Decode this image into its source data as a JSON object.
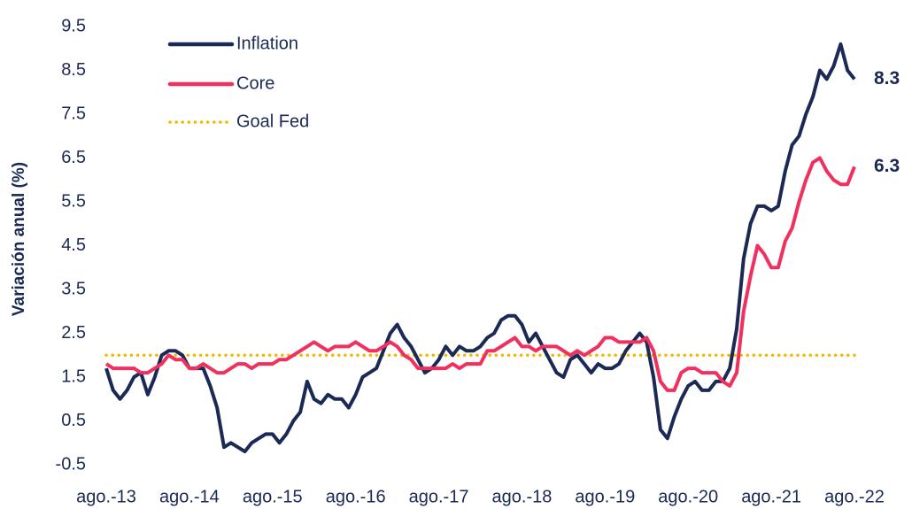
{
  "chart_data": {
    "type": "line",
    "y_label": "Variación anual (%)",
    "categories": [
      "ago.-13",
      null,
      null,
      null,
      null,
      null,
      null,
      null,
      null,
      null,
      null,
      null,
      "ago.-14",
      null,
      null,
      null,
      null,
      null,
      null,
      null,
      null,
      null,
      null,
      null,
      "ago.-15",
      null,
      null,
      null,
      null,
      null,
      null,
      null,
      null,
      null,
      null,
      null,
      "ago.-16",
      null,
      null,
      null,
      null,
      null,
      null,
      null,
      null,
      null,
      null,
      null,
      "ago.-17",
      null,
      null,
      null,
      null,
      null,
      null,
      null,
      null,
      null,
      null,
      null,
      "ago.-18",
      null,
      null,
      null,
      null,
      null,
      null,
      null,
      null,
      null,
      null,
      null,
      "ago.-19",
      null,
      null,
      null,
      null,
      null,
      null,
      null,
      null,
      null,
      null,
      null,
      "ago.-20",
      null,
      null,
      null,
      null,
      null,
      null,
      null,
      null,
      null,
      null,
      null,
      "ago.-21",
      null,
      null,
      null,
      null,
      null,
      null,
      null,
      null,
      null,
      null,
      null,
      "ago.-22"
    ],
    "series": [
      {
        "name": "Inflation",
        "color": "#1b2a55",
        "values": [
          1.7,
          1.2,
          1.0,
          1.2,
          1.5,
          1.6,
          1.1,
          1.5,
          2.0,
          2.1,
          2.1,
          2.0,
          1.7,
          1.7,
          1.7,
          1.3,
          0.8,
          -0.1,
          0.0,
          -0.1,
          -0.2,
          0.0,
          0.1,
          0.2,
          0.2,
          0.0,
          0.2,
          0.5,
          0.7,
          1.4,
          1.0,
          0.9,
          1.1,
          1.0,
          1.0,
          0.8,
          1.1,
          1.5,
          1.6,
          1.7,
          2.1,
          2.5,
          2.7,
          2.4,
          2.2,
          1.9,
          1.6,
          1.7,
          1.9,
          2.2,
          2.0,
          2.2,
          2.1,
          2.1,
          2.2,
          2.4,
          2.5,
          2.8,
          2.9,
          2.9,
          2.7,
          2.3,
          2.5,
          2.2,
          1.9,
          1.6,
          1.5,
          1.9,
          2.0,
          1.8,
          1.6,
          1.8,
          1.7,
          1.7,
          1.8,
          2.1,
          2.3,
          2.5,
          2.3,
          1.5,
          0.3,
          0.1,
          0.6,
          1.0,
          1.3,
          1.4,
          1.2,
          1.2,
          1.4,
          1.4,
          1.7,
          2.6,
          4.2,
          5.0,
          5.4,
          5.4,
          5.3,
          5.4,
          6.2,
          6.8,
          7.0,
          7.5,
          7.9,
          8.5,
          8.3,
          8.6,
          9.1,
          8.5,
          8.3
        ]
      },
      {
        "name": "Core",
        "color": "#f0305f",
        "values": [
          1.8,
          1.7,
          1.7,
          1.7,
          1.7,
          1.6,
          1.6,
          1.7,
          1.8,
          2.0,
          1.9,
          1.9,
          1.7,
          1.7,
          1.8,
          1.7,
          1.6,
          1.6,
          1.7,
          1.8,
          1.8,
          1.7,
          1.8,
          1.8,
          1.8,
          1.9,
          1.9,
          2.0,
          2.1,
          2.2,
          2.3,
          2.2,
          2.1,
          2.2,
          2.2,
          2.2,
          2.3,
          2.2,
          2.1,
          2.1,
          2.2,
          2.3,
          2.2,
          2.0,
          1.9,
          1.7,
          1.7,
          1.7,
          1.7,
          1.7,
          1.8,
          1.7,
          1.8,
          1.8,
          1.8,
          2.1,
          2.1,
          2.2,
          2.3,
          2.4,
          2.2,
          2.2,
          2.1,
          2.2,
          2.2,
          2.2,
          2.1,
          2.0,
          2.1,
          2.0,
          2.1,
          2.2,
          2.4,
          2.4,
          2.3,
          2.3,
          2.3,
          2.3,
          2.4,
          2.1,
          1.4,
          1.2,
          1.2,
          1.6,
          1.7,
          1.7,
          1.6,
          1.6,
          1.6,
          1.4,
          1.3,
          1.6,
          3.0,
          3.8,
          4.5,
          4.3,
          4.0,
          4.0,
          4.6,
          4.9,
          5.5,
          6.0,
          6.4,
          6.5,
          6.2,
          6.0,
          5.9,
          5.9,
          6.3
        ]
      }
    ],
    "reference_lines": [
      {
        "name": "Goal Fed",
        "value": 2,
        "color": "#f5b800"
      }
    ],
    "ylim": [
      -0.5,
      9.5
    ],
    "yticks": [
      -0.5,
      0.5,
      1.5,
      2.5,
      3.5,
      4.5,
      5.5,
      6.5,
      7.5,
      8.5,
      9.5
    ]
  }
}
